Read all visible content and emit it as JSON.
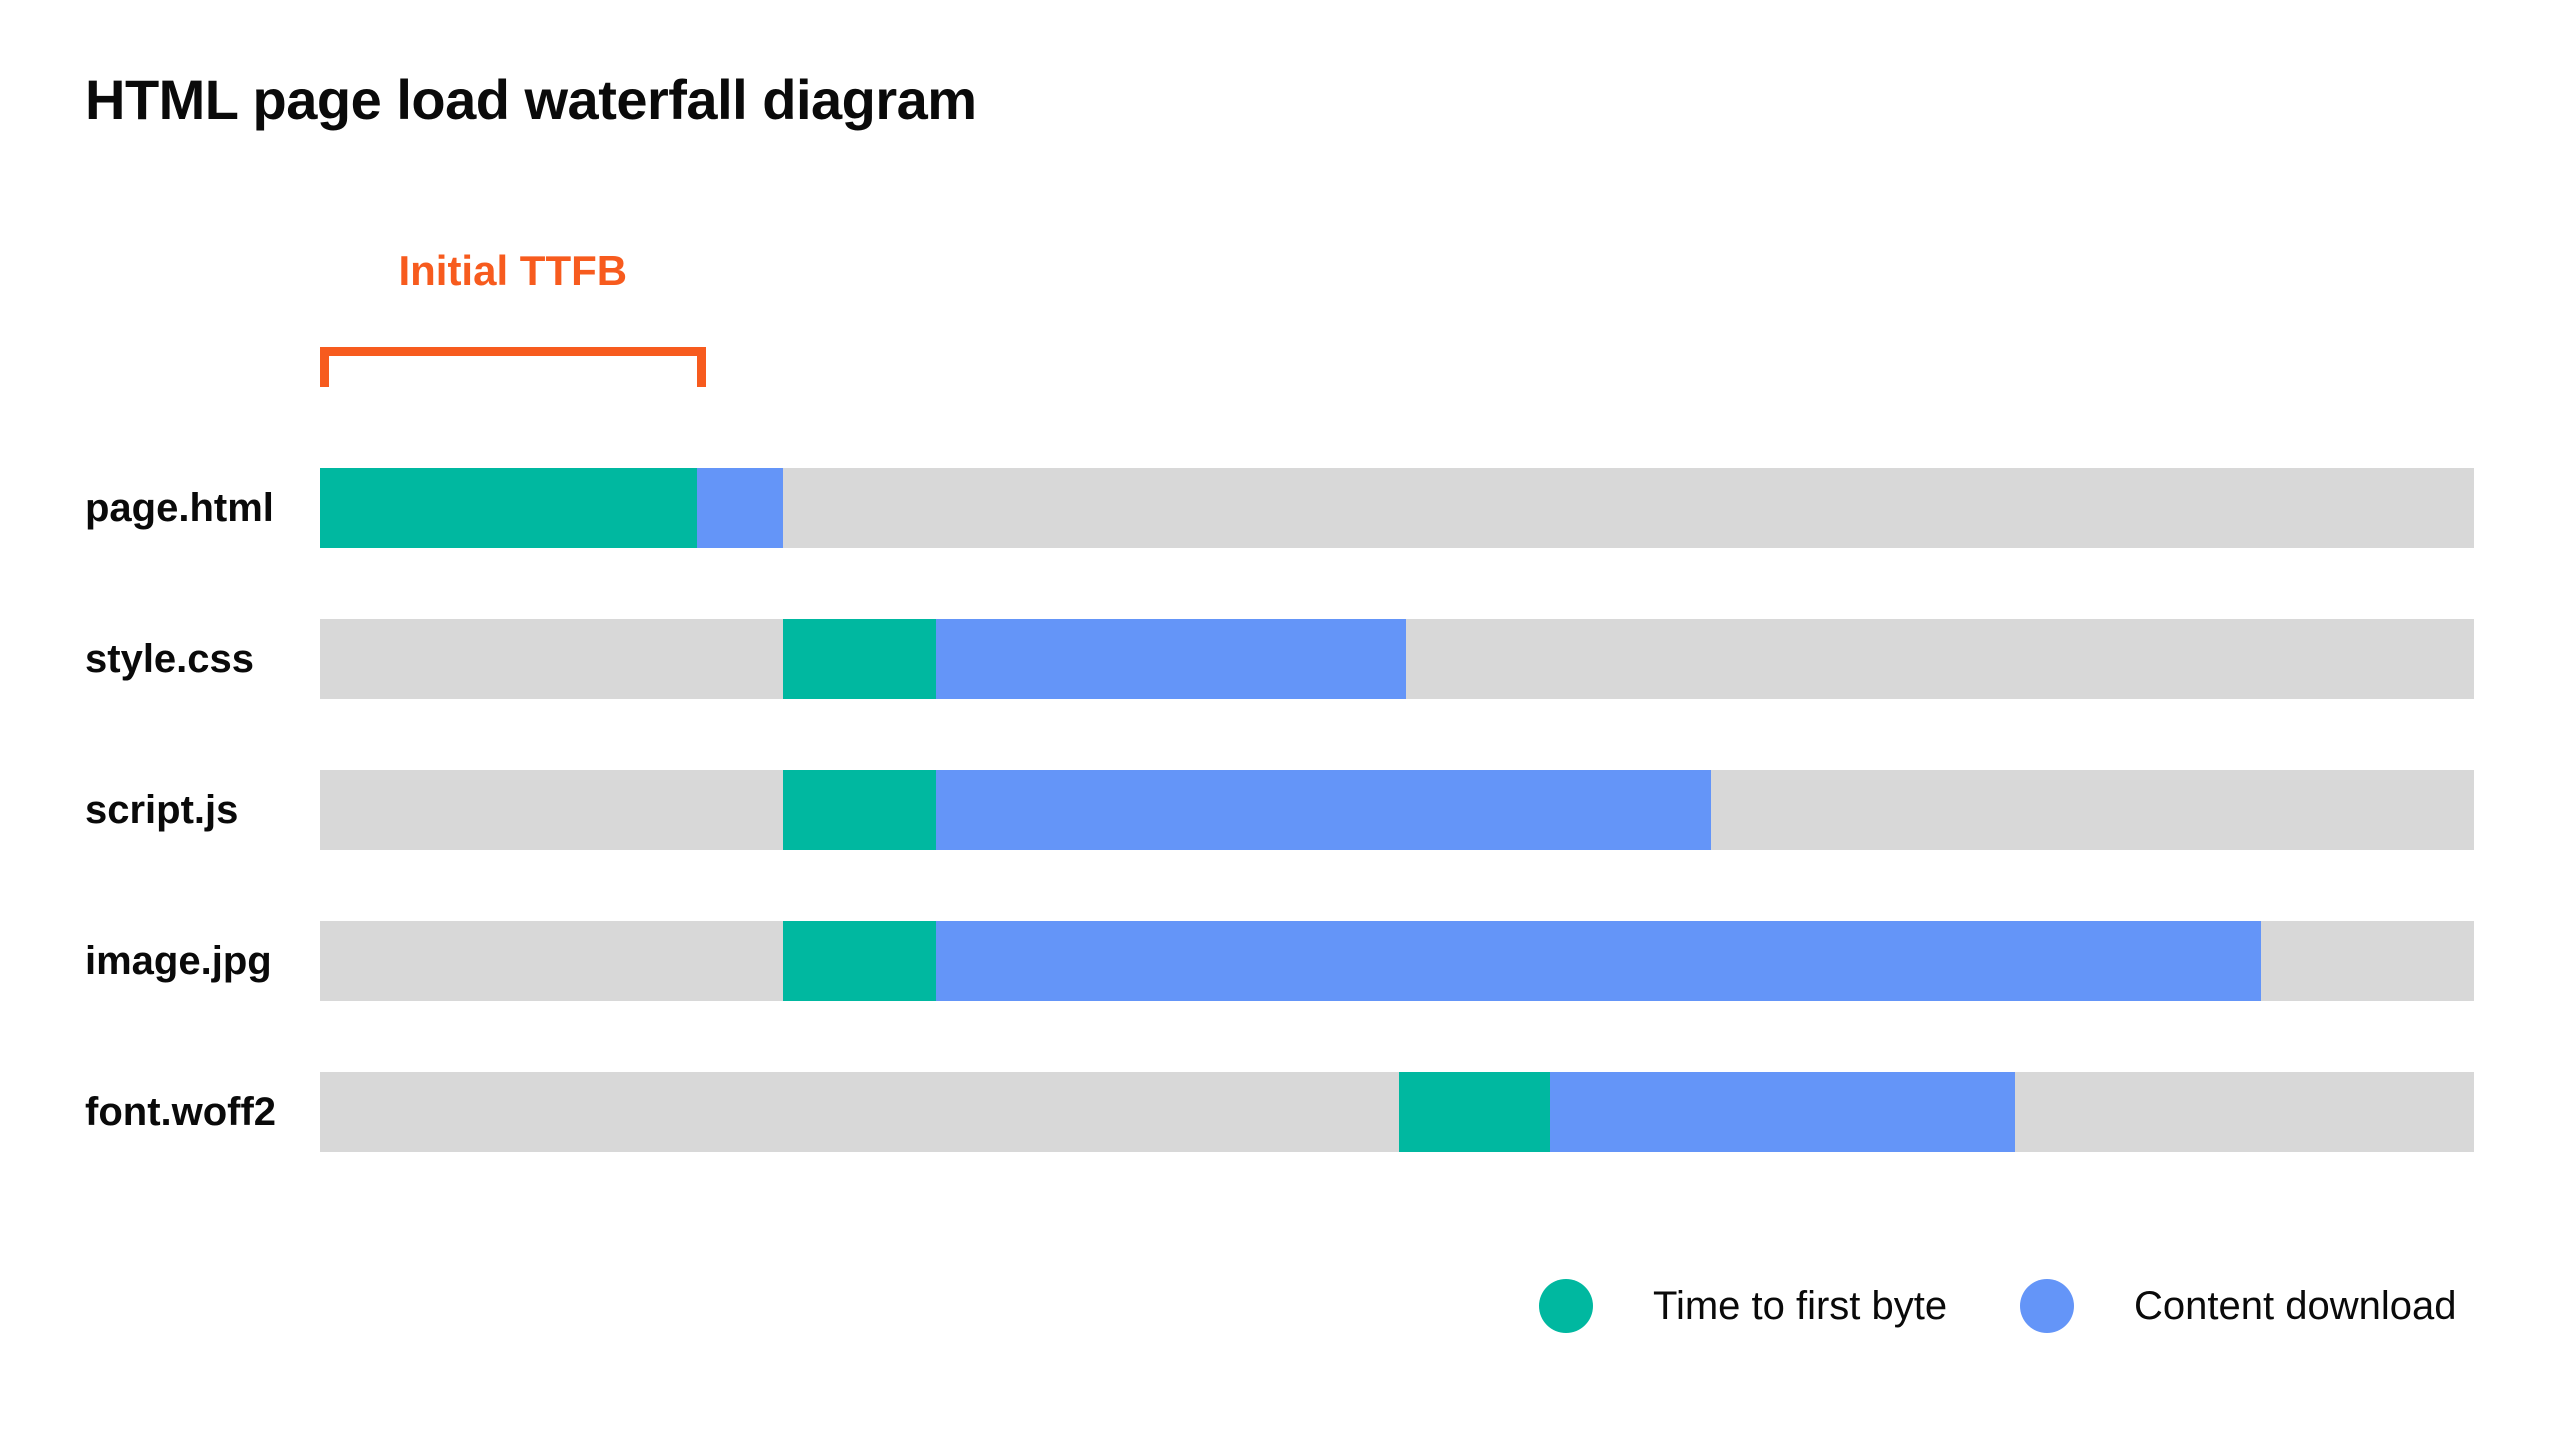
{
  "page": {
    "title": "HTML page load waterfall diagram"
  },
  "annotation": {
    "label": "Initial TTFB"
  },
  "legend": {
    "items": [
      {
        "id": "ttfb",
        "label": "Time to first byte"
      },
      {
        "id": "download",
        "label": "Content download"
      }
    ]
  },
  "colors": {
    "ttfb": "#00B8A0",
    "download": "#6495F8",
    "track": "#D8D8D8",
    "annotation": "#F75B1E",
    "text": "#0A0A0A",
    "background": "#FFFFFF"
  },
  "chart_data": {
    "type": "bar",
    "variant": "waterfall-gantt",
    "orientation": "horizontal",
    "title": "HTML page load waterfall diagram",
    "x_units": "percent of visible timeline (no numeric axis shown)",
    "x_range": [
      0,
      100
    ],
    "grid": false,
    "legend_position": "bottom-right",
    "series_legend": [
      "Time to first byte",
      "Content download"
    ],
    "rows": [
      {
        "label": "page.html",
        "start": 0,
        "ttfb_end": 17.5,
        "download_end": 21.5
      },
      {
        "label": "style.css",
        "start": 21.5,
        "ttfb_end": 28.6,
        "download_end": 50.4
      },
      {
        "label": "script.js",
        "start": 21.5,
        "ttfb_end": 28.6,
        "download_end": 64.6
      },
      {
        "label": "image.jpg",
        "start": 21.5,
        "ttfb_end": 28.6,
        "download_end": 90.1
      },
      {
        "label": "font.woff2",
        "start": 50.1,
        "ttfb_end": 57.1,
        "download_end": 78.7
      }
    ],
    "annotations": [
      {
        "label": "Initial TTFB",
        "from_pct": 0,
        "to_pct": 17.9,
        "applies_to": "page.html",
        "position": "above-first-row"
      }
    ]
  }
}
